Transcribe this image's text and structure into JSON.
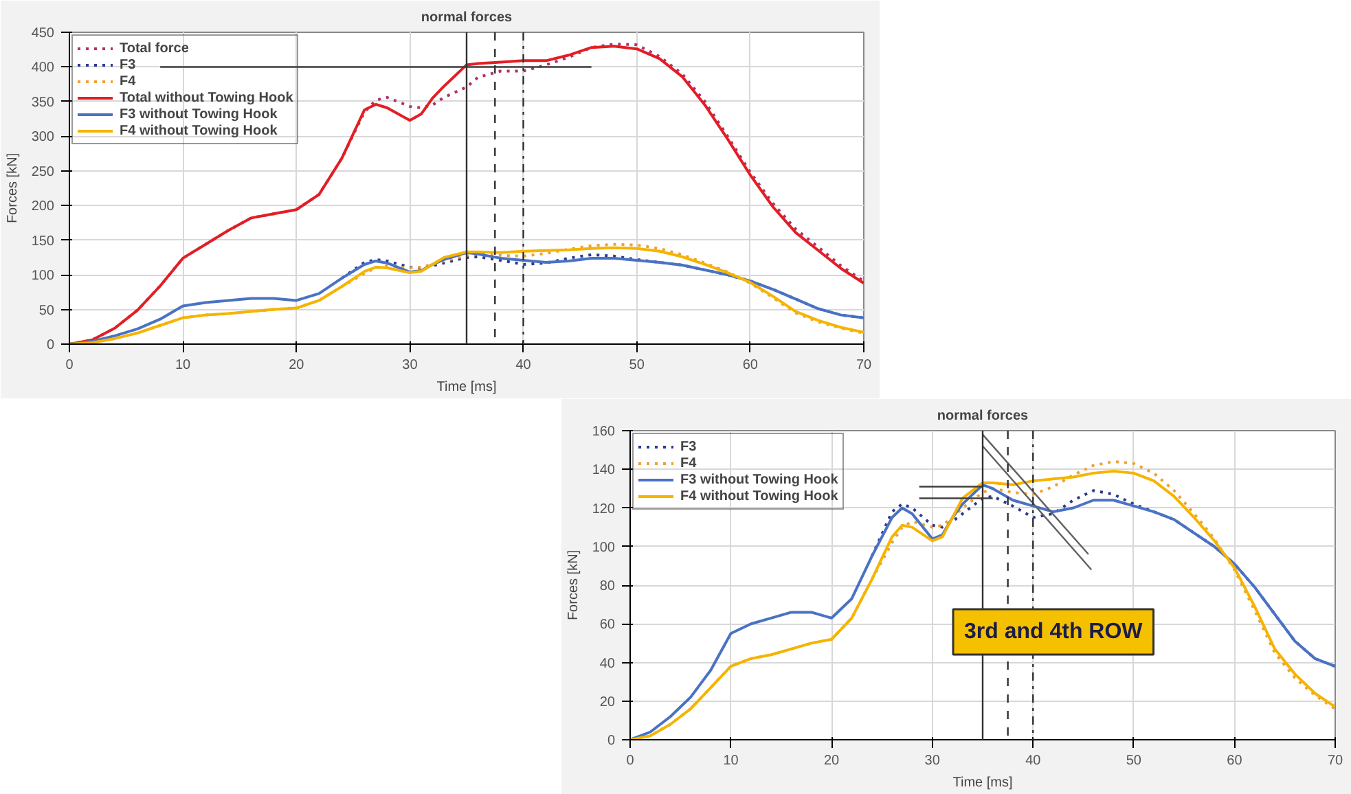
{
  "chart_data": [
    {
      "type": "line",
      "title": "normal forces",
      "xlabel": "Time [ms]",
      "ylabel": "Forces [kN]",
      "xlim": [
        0,
        70
      ],
      "ylim": [
        0,
        450
      ],
      "xticks": [
        0,
        10,
        20,
        30,
        40,
        50,
        60,
        70
      ],
      "yticks": [
        0,
        50,
        100,
        150,
        200,
        250,
        300,
        350,
        400,
        450
      ],
      "grid": true,
      "legend": "top left",
      "x": [
        0,
        2,
        4,
        6,
        8,
        10,
        12,
        14,
        16,
        18,
        20,
        22,
        24,
        26,
        27,
        28,
        30,
        31,
        32,
        33,
        35,
        36,
        38,
        40,
        42,
        44,
        46,
        48,
        50,
        52,
        54,
        56,
        58,
        60,
        62,
        64,
        66,
        68,
        70
      ],
      "series": [
        {
          "name": "Total force",
          "color": "#b0306a",
          "line_style": "dotted",
          "values": [
            0,
            6,
            23,
            49,
            84,
            124,
            144,
            164,
            182,
            188,
            194,
            216,
            268,
            335,
            352,
            356,
            343,
            341,
            345,
            356,
            371,
            385,
            394,
            394,
            403,
            414,
            428,
            433,
            432,
            415,
            390,
            350,
            300,
            248,
            203,
            166,
            140,
            113,
            91
          ]
        },
        {
          "name": "F3",
          "color": "#2b3990",
          "line_style": "dotted",
          "values": [
            null,
            null,
            null,
            null,
            null,
            null,
            null,
            null,
            null,
            null,
            null,
            null,
            95,
            118,
            122,
            120,
            111,
            110,
            113,
            117,
            125,
            126,
            121,
            115,
            117,
            124,
            129,
            127,
            122,
            118,
            114,
            107,
            100,
            91,
            79,
            65,
            51,
            42,
            38
          ]
        },
        {
          "name": "F4",
          "color": "#f0a030",
          "line_style": "dotted",
          "values": [
            0,
            2,
            8,
            16,
            27,
            38,
            42,
            44,
            47,
            50,
            52,
            63,
            83,
            102,
            110,
            113,
            110,
            111,
            115,
            120,
            128,
            130,
            128,
            127,
            131,
            137,
            142,
            144,
            143,
            138,
            129,
            117,
            104,
            88,
            67,
            45,
            32,
            23,
            16
          ]
        },
        {
          "name": "Total without Towing Hook",
          "color": "#e31e24",
          "line_style": "solid",
          "values": [
            0,
            6,
            23,
            49,
            84,
            124,
            144,
            164,
            182,
            188,
            194,
            216,
            268,
            338,
            346,
            341,
            323,
            332,
            355,
            372,
            403,
            405,
            407,
            409,
            409,
            417,
            428,
            430,
            426,
            412,
            386,
            345,
            296,
            244,
            198,
            161,
            135,
            109,
            88
          ]
        },
        {
          "name": "F3 without Towing Hook",
          "color": "#4a72c4",
          "line_style": "solid",
          "values": [
            0,
            4,
            12,
            22,
            36,
            55,
            60,
            63,
            66,
            66,
            63,
            73,
            95,
            115,
            120,
            117,
            104,
            106,
            115,
            122,
            132,
            130,
            124,
            121,
            118,
            120,
            124,
            124,
            121,
            118,
            114,
            107,
            100,
            91,
            79,
            65,
            51,
            42,
            38
          ]
        },
        {
          "name": "F4 without Towing Hook",
          "color": "#f5b400",
          "line_style": "solid",
          "values": [
            0,
            2,
            8,
            16,
            27,
            38,
            42,
            44,
            47,
            50,
            52,
            63,
            83,
            105,
            111,
            110,
            103,
            105,
            115,
            125,
            133,
            133,
            132,
            134,
            135,
            136,
            138,
            139,
            138,
            134,
            126,
            115,
            103,
            89,
            69,
            47,
            34,
            24,
            17
          ]
        },
        {
          "color": "#404040",
          "line_style": "solid",
          "x": [
            8,
            46
          ],
          "values": [
            400,
            400
          ]
        }
      ],
      "ref_lines": [
        {
          "axis": "x",
          "value": 35,
          "color": "#303030",
          "line_style": "solid"
        },
        {
          "axis": "x",
          "value": 37.5,
          "color": "#303030",
          "line_style": "dashed"
        },
        {
          "axis": "x",
          "value": 40,
          "color": "#303030",
          "line_style": "dashdot"
        }
      ]
    },
    {
      "type": "line",
      "title": "normal forces",
      "xlabel": "Time [ms]",
      "ylabel": "Forces [kN]",
      "xlim": [
        0,
        70
      ],
      "ylim": [
        0,
        160
      ],
      "xticks": [
        0,
        10,
        20,
        30,
        40,
        50,
        60,
        70
      ],
      "yticks": [
        0,
        20,
        40,
        60,
        80,
        100,
        120,
        140,
        160
      ],
      "grid": true,
      "legend": "top left",
      "x": [
        0,
        2,
        4,
        6,
        8,
        10,
        12,
        14,
        16,
        18,
        20,
        22,
        24,
        26,
        27,
        28,
        30,
        31,
        32,
        33,
        35,
        36,
        38,
        40,
        42,
        44,
        46,
        48,
        50,
        52,
        54,
        56,
        58,
        60,
        62,
        64,
        66,
        68,
        70
      ],
      "series": [
        {
          "name": "F3",
          "color": "#2b3990",
          "line_style": "dotted",
          "values": [
            null,
            null,
            null,
            null,
            null,
            null,
            null,
            null,
            null,
            null,
            null,
            null,
            95,
            118,
            122,
            120,
            111,
            110,
            113,
            117,
            125,
            126,
            121,
            115,
            117,
            124,
            129,
            127,
            122,
            118,
            114,
            107,
            100,
            91,
            79,
            65,
            51,
            42,
            38
          ]
        },
        {
          "name": "F4",
          "color": "#f0a030",
          "line_style": "dotted",
          "values": [
            0,
            2,
            8,
            16,
            27,
            38,
            42,
            44,
            47,
            50,
            52,
            63,
            83,
            102,
            110,
            113,
            110,
            111,
            115,
            120,
            128,
            130,
            128,
            127,
            131,
            137,
            142,
            144,
            143,
            138,
            129,
            117,
            104,
            88,
            67,
            45,
            32,
            23,
            16
          ]
        },
        {
          "name": "F3 without Towing Hook",
          "color": "#4a72c4",
          "line_style": "solid",
          "values": [
            0,
            4,
            12,
            22,
            36,
            55,
            60,
            63,
            66,
            66,
            63,
            73,
            95,
            115,
            120,
            117,
            104,
            106,
            115,
            122,
            132,
            130,
            124,
            121,
            118,
            120,
            124,
            124,
            121,
            118,
            114,
            107,
            100,
            91,
            79,
            65,
            51,
            42,
            38
          ]
        },
        {
          "name": "F4 without Towing Hook",
          "color": "#f5b400",
          "line_style": "solid",
          "values": [
            0,
            2,
            8,
            16,
            27,
            38,
            42,
            44,
            47,
            50,
            52,
            63,
            83,
            105,
            111,
            110,
            103,
            105,
            115,
            125,
            133,
            133,
            132,
            134,
            135,
            136,
            138,
            139,
            138,
            134,
            126,
            115,
            103,
            89,
            69,
            47,
            34,
            24,
            17
          ]
        },
        {
          "color": "#404040",
          "line_style": "solid",
          "x": [
            28.7,
            35
          ],
          "values": [
            131,
            131
          ]
        },
        {
          "color": "#404040",
          "line_style": "solid",
          "x": [
            28.7,
            36
          ],
          "values": [
            125,
            125
          ]
        },
        {
          "color": "#606060",
          "line_style": "solid",
          "x": [
            35,
            45.5
          ],
          "values": [
            158,
            96
          ]
        },
        {
          "color": "#606060",
          "line_style": "solid",
          "x": [
            35,
            45.8
          ],
          "values": [
            152,
            88
          ]
        }
      ],
      "ref_lines": [
        {
          "axis": "x",
          "value": 35,
          "color": "#303030",
          "line_style": "solid"
        },
        {
          "axis": "x",
          "value": 37.5,
          "color": "#303030",
          "line_style": "dashed"
        },
        {
          "axis": "x",
          "value": 40,
          "color": "#303030",
          "line_style": "dashdot"
        }
      ],
      "annotations": [
        "3rd and 4th ROW"
      ]
    }
  ]
}
